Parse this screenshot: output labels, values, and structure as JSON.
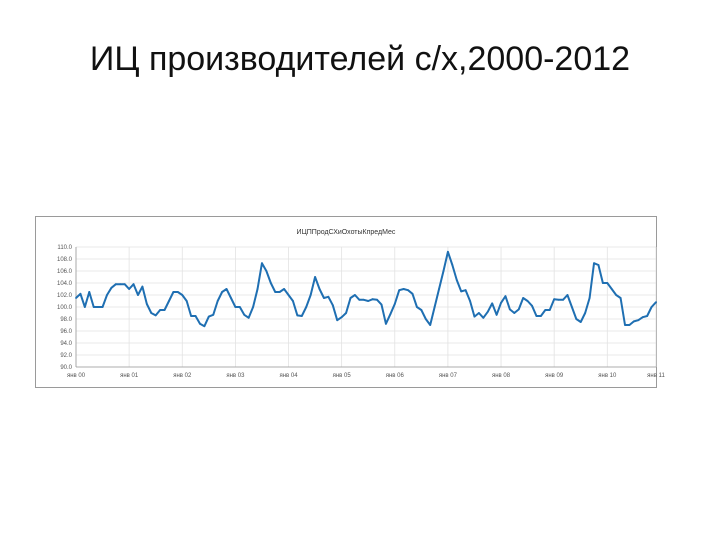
{
  "slide": {
    "title": "ИЦ производителей с/х,2000-2012"
  },
  "chart_data": {
    "type": "line",
    "title": "ИЦППродСХиОхотыКпредМес",
    "ylim": [
      90.0,
      110.0
    ],
    "y_ticks": [
      "110.0",
      "108.0",
      "106.0",
      "104.0",
      "102.0",
      "100.0",
      "98.0",
      "96.0",
      "94.0",
      "92.0",
      "90.0"
    ],
    "x_tick_labels": [
      "янв 00",
      "янв 01",
      "янв 02",
      "янв 03",
      "янв 04",
      "янв 05",
      "янв 06",
      "янв 07",
      "янв 08",
      "янв 09",
      "янв 10",
      "янв 11"
    ],
    "grid": true,
    "line_color": "#1f6fb2",
    "series": [
      {
        "values": [
          101.5,
          102.2,
          100.0,
          102.5,
          100.0,
          100.0,
          100.0,
          102.0,
          103.2,
          103.8,
          103.8,
          103.8,
          103.0,
          103.8,
          102.0,
          103.4,
          100.5,
          99.0,
          98.6,
          99.5,
          99.5,
          101.0,
          102.5,
          102.5,
          102.0,
          101.0,
          98.5,
          98.5,
          97.2,
          96.8,
          98.4,
          98.7,
          101.0,
          102.5,
          103.0,
          101.5,
          100.0,
          100.0,
          98.7,
          98.2,
          100.0,
          103.0,
          107.3,
          106.0,
          104.0,
          102.5,
          102.5,
          103.0,
          102.0,
          101.0,
          98.6,
          98.5,
          100.0,
          102.0,
          105.0,
          103.0,
          101.5,
          101.7,
          100.3,
          97.8,
          98.3,
          99.0,
          101.5,
          102.0,
          101.2,
          101.2,
          101.0,
          101.3,
          101.2,
          100.4,
          97.2,
          98.8,
          100.5,
          102.8,
          103.0,
          102.8,
          102.2,
          100.0,
          99.5,
          98.0,
          97.0,
          100.0,
          103.0,
          106.0,
          109.2,
          107.0,
          104.5,
          102.6,
          102.8,
          101.0,
          98.4,
          99.0,
          98.2,
          99.2,
          100.6,
          98.7,
          100.7,
          101.8,
          99.6,
          99.0,
          99.6,
          101.5,
          101.0,
          100.2,
          98.5,
          98.5,
          99.5,
          99.5,
          101.3,
          101.2,
          101.2,
          102.0,
          100.0,
          98.0,
          97.5,
          99.0,
          101.5,
          107.3,
          107.0,
          104.0,
          104.0,
          103.0,
          102.0,
          101.5,
          97.0,
          97.0,
          97.6,
          97.8,
          98.3,
          98.5,
          100.0,
          100.8
        ]
      }
    ]
  }
}
